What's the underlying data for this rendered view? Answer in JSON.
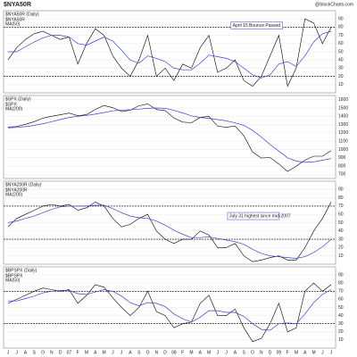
{
  "title": "$NYA50R",
  "source": "@StockCharts.com",
  "chart_data": [
    {
      "type": "line",
      "title": "$NYA50R (Daily)",
      "ylim": [
        0,
        100
      ],
      "yticks": [
        10,
        20,
        30,
        40,
        50,
        60,
        70,
        80,
        90
      ],
      "grid": true,
      "hlines": [
        80,
        20
      ],
      "annotation": "April 15 Bounce Passed",
      "series": [
        {
          "name": "$NYA50R",
          "color": "#000000",
          "values": [
            40,
            55,
            65,
            72,
            75,
            70,
            65,
            68,
            35,
            60,
            78,
            70,
            45,
            30,
            20,
            40,
            70,
            20,
            30,
            15,
            35,
            30,
            55,
            70,
            25,
            30,
            40,
            15,
            8,
            20,
            45,
            70,
            8,
            30,
            90,
            85,
            60,
            80
          ]
        },
        {
          "name": "MA(50)",
          "color": "#3344cc",
          "values": [
            50,
            50,
            56,
            62,
            67,
            70,
            70,
            68,
            60,
            58,
            63,
            68,
            63,
            52,
            40,
            36,
            45,
            42,
            38,
            30,
            28,
            28,
            36,
            46,
            44,
            42,
            38,
            30,
            22,
            18,
            22,
            35,
            38,
            32,
            45,
            62,
            72,
            75
          ]
        }
      ]
    },
    {
      "type": "line",
      "title": "$SPX (Daily)",
      "ylim": [
        650,
        1650
      ],
      "yticks": [
        700,
        800,
        900,
        1000,
        1100,
        1200,
        1300,
        1400,
        1500,
        1600
      ],
      "grid": true,
      "hlines": [],
      "series": [
        {
          "name": "$SPX",
          "color": "#000000",
          "values": [
            1270,
            1276,
            1303,
            1335,
            1377,
            1400,
            1418,
            1438,
            1406,
            1420,
            1482,
            1530,
            1503,
            1455,
            1473,
            1526,
            1549,
            1481,
            1468,
            1378,
            1330,
            1322,
            1385,
            1400,
            1280,
            1267,
            1282,
            1166,
            968,
            896,
            903,
            825,
            735,
            797,
            872,
            919,
            919,
            987
          ]
        },
        {
          "name": "MA(200)",
          "color": "#3344cc",
          "values": [
            1260,
            1265,
            1275,
            1290,
            1310,
            1335,
            1360,
            1385,
            1400,
            1410,
            1425,
            1445,
            1465,
            1475,
            1478,
            1485,
            1495,
            1500,
            1495,
            1470,
            1440,
            1405,
            1385,
            1375,
            1360,
            1345,
            1320,
            1290,
            1230,
            1150,
            1060,
            980,
            900,
            860,
            845,
            850,
            870,
            890
          ]
        }
      ]
    },
    {
      "type": "line",
      "title": "$NYA200R (Daily)",
      "ylim": [
        0,
        100
      ],
      "yticks": [
        10,
        20,
        30,
        40,
        50,
        60,
        70,
        80,
        90
      ],
      "grid": true,
      "hlines": [
        70,
        30
      ],
      "annotation": "July 31 highest since mid-2007",
      "series": [
        {
          "name": "$NYA200R",
          "color": "#000000",
          "values": [
            45,
            55,
            60,
            65,
            70,
            72,
            70,
            72,
            65,
            68,
            75,
            70,
            55,
            45,
            48,
            55,
            60,
            40,
            30,
            25,
            30,
            30,
            40,
            35,
            20,
            20,
            25,
            10,
            3,
            5,
            8,
            10,
            5,
            5,
            20,
            40,
            55,
            75
          ]
        },
        {
          "name": "MA(200)",
          "color": "#3344cc",
          "values": [
            50,
            52,
            55,
            58,
            62,
            66,
            69,
            70,
            70,
            70,
            71,
            71,
            67,
            62,
            58,
            56,
            55,
            52,
            47,
            41,
            36,
            32,
            32,
            33,
            31,
            29,
            27,
            24,
            18,
            13,
            10,
            9,
            8,
            7,
            9,
            14,
            21,
            30
          ]
        }
      ]
    },
    {
      "type": "line",
      "title": "$BPSPX (Daily)",
      "ylim": [
        0,
        100
      ],
      "yticks": [
        10,
        20,
        30,
        40,
        50,
        60,
        70,
        80,
        90
      ],
      "grid": true,
      "hlines": [
        70,
        30
      ],
      "categories": [
        "J",
        "J",
        "A",
        "S",
        "O",
        "N",
        "D",
        "07",
        "F",
        "M",
        "A",
        "M",
        "J",
        "J",
        "A",
        "S",
        "O",
        "N",
        "D",
        "08",
        "F",
        "M",
        "A",
        "M",
        "J",
        "J",
        "A",
        "S",
        "O",
        "N",
        "D",
        "09",
        "F",
        "M",
        "A",
        "M",
        "J",
        "J"
      ],
      "series": [
        {
          "name": "$BPSPX",
          "color": "#000000",
          "values": [
            55,
            60,
            65,
            70,
            74,
            72,
            70,
            72,
            55,
            65,
            78,
            75,
            62,
            50,
            40,
            50,
            70,
            45,
            40,
            25,
            30,
            32,
            55,
            65,
            40,
            40,
            48,
            25,
            8,
            12,
            30,
            55,
            20,
            25,
            70,
            80,
            70,
            78
          ]
        },
        {
          "name": "MA(50)",
          "color": "#3344cc",
          "values": [
            58,
            58,
            61,
            64,
            68,
            70,
            71,
            71,
            67,
            66,
            69,
            72,
            70,
            64,
            56,
            52,
            56,
            55,
            51,
            42,
            36,
            32,
            38,
            46,
            46,
            44,
            44,
            39,
            30,
            23,
            22,
            30,
            31,
            30,
            42,
            56,
            66,
            72
          ]
        }
      ]
    }
  ]
}
